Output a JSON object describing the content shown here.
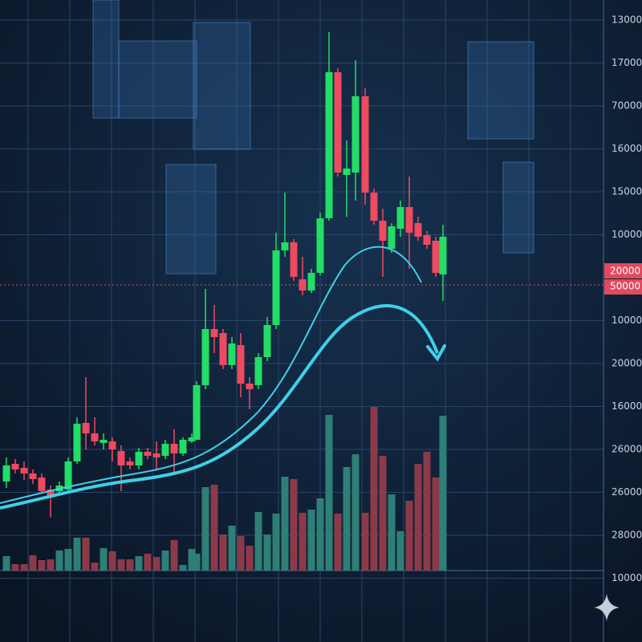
{
  "axis_labels": [
    "13000",
    "17000",
    "70000",
    "16000",
    "15000",
    "10000",
    "10000",
    "20000",
    "16000",
    "26000",
    "26000",
    "28000",
    "10000"
  ],
  "price_tags": [
    "20000",
    "50000"
  ]
}
